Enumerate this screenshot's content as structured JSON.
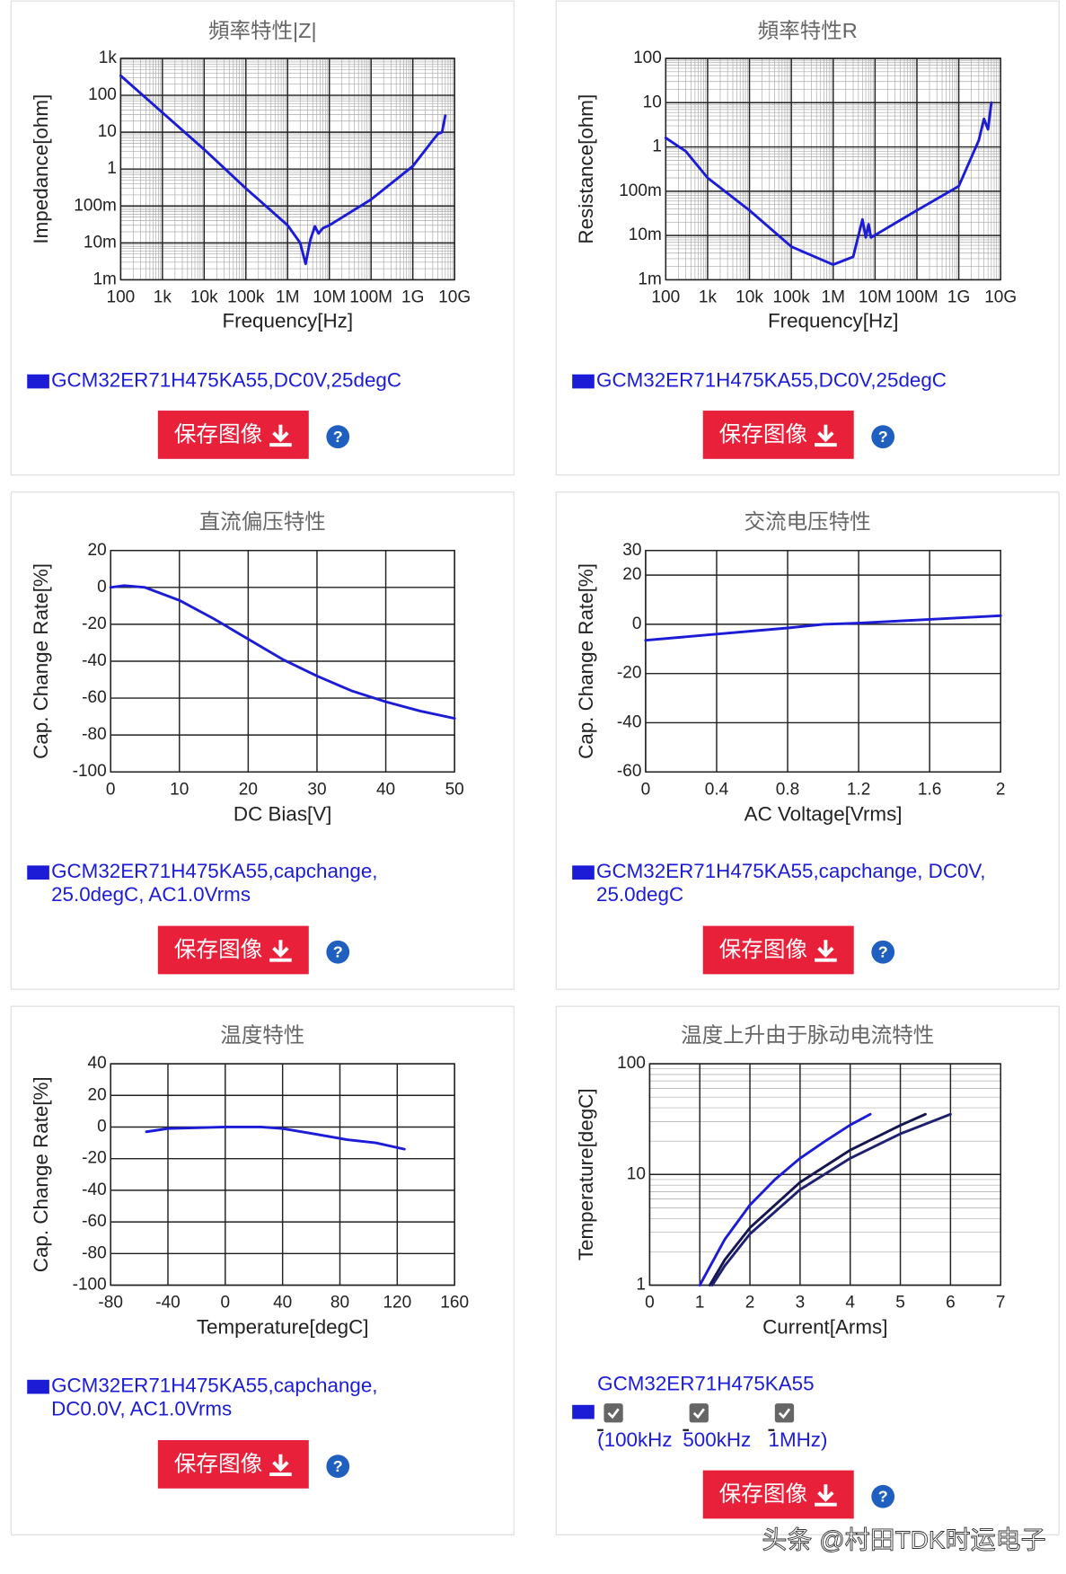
{
  "chart_data": [
    {
      "type": "line",
      "title": "頻率特性|Z|",
      "xlabel": "Frequency[Hz]",
      "ylabel": "Impedance[ohm]",
      "xscale": "log",
      "yscale": "log",
      "grid": true,
      "minor_grid": true,
      "xlim": [
        100,
        10000000000
      ],
      "ylim": [
        0.001,
        1000
      ],
      "xticks": [
        100,
        {
          "value": 1000,
          "label": "1k"
        },
        {
          "value": 10000,
          "label": "10k"
        },
        {
          "value": 100000,
          "label": "100k"
        },
        {
          "value": 1000000,
          "label": "1M"
        },
        {
          "value": 10000000,
          "label": "10M"
        },
        {
          "value": 100000000,
          "label": "100M"
        },
        {
          "value": 1000000000,
          "label": "1G"
        },
        {
          "value": 10000000000,
          "label": "10G"
        }
      ],
      "yticks": [
        {
          "value": 0.001,
          "label": "1m"
        },
        {
          "value": 0.01,
          "label": "10m"
        },
        {
          "value": 0.1,
          "label": "100m"
        },
        1,
        10,
        100,
        {
          "value": 1000,
          "label": "1k"
        }
      ],
      "series": [
        {
          "name": "GCM32ER71H475KA55,DC0V,25degC",
          "color": "#1c1cd6",
          "x": [
            100,
            1000,
            10000,
            100000,
            1000000,
            2000000,
            2700000,
            3500000,
            4500000,
            5500000,
            7000000,
            10000000,
            100000000,
            1000000000,
            3000000000,
            4000000000,
            5000000000,
            6000000000
          ],
          "values": [
            339,
            34,
            3.4,
            0.3,
            0.03,
            0.01,
            0.0027,
            0.012,
            0.028,
            0.018,
            0.025,
            0.03,
            0.15,
            1.2,
            6,
            9,
            10,
            28
          ]
        }
      ]
    },
    {
      "type": "line",
      "title": "頻率特性R",
      "xlabel": "Frequency[Hz]",
      "ylabel": "Resistance[ohm]",
      "xscale": "log",
      "yscale": "log",
      "grid": true,
      "minor_grid": true,
      "xlim": [
        100,
        10000000000
      ],
      "ylim": [
        0.001,
        100
      ],
      "xticks": [
        100,
        {
          "value": 1000,
          "label": "1k"
        },
        {
          "value": 10000,
          "label": "10k"
        },
        {
          "value": 100000,
          "label": "100k"
        },
        {
          "value": 1000000,
          "label": "1M"
        },
        {
          "value": 10000000,
          "label": "10M"
        },
        {
          "value": 100000000,
          "label": "100M"
        },
        {
          "value": 1000000000,
          "label": "1G"
        },
        {
          "value": 10000000000,
          "label": "10G"
        }
      ],
      "yticks": [
        {
          "value": 0.001,
          "label": "1m"
        },
        {
          "value": 0.01,
          "label": "10m"
        },
        {
          "value": 0.1,
          "label": "100m"
        },
        1,
        10,
        100
      ],
      "series": [
        {
          "name": "GCM32ER71H475KA55,DC0V,25degC",
          "color": "#1c1cd6",
          "x": [
            100,
            300,
            1000,
            10000,
            100000,
            1000000,
            3000000,
            5000000,
            6000000,
            7000000,
            8000000,
            100000000,
            1000000000,
            3000000000,
            4000000000,
            5000000000,
            6000000000
          ],
          "values": [
            1.6,
            0.8,
            0.2,
            0.037,
            0.0056,
            0.0022,
            0.0033,
            0.023,
            0.009,
            0.018,
            0.009,
            0.037,
            0.13,
            1.4,
            4.3,
            2.5,
            10
          ]
        }
      ]
    },
    {
      "type": "line",
      "title": "直流偏压特性",
      "xlabel": "DC Bias[V]",
      "ylabel": "Cap. Change Rate[%]",
      "xscale": "linear",
      "yscale": "linear",
      "grid": true,
      "xlim": [
        0,
        50
      ],
      "ylim": [
        -100,
        20
      ],
      "xticks": [
        0,
        10,
        20,
        30,
        40,
        50
      ],
      "yticks": [
        -100,
        -80,
        -60,
        -40,
        -20,
        0,
        20
      ],
      "series": [
        {
          "name": "GCM32ER71H475KA55,capchange, 25.0degC, AC1.0Vrms",
          "color": "#1c1cd6",
          "x": [
            0,
            2,
            5,
            10,
            15,
            20,
            25,
            30,
            35,
            40,
            45,
            50
          ],
          "values": [
            0,
            1,
            0,
            -7,
            -17,
            -28,
            -39,
            -48,
            -56,
            -62,
            -67,
            -71
          ]
        }
      ]
    },
    {
      "type": "line",
      "title": "交流电压特性",
      "xlabel": "AC Voltage[Vrms]",
      "ylabel": "Cap. Change Rate[%]",
      "xscale": "linear",
      "yscale": "linear",
      "grid": true,
      "xlim": [
        0,
        2
      ],
      "ylim": [
        -60,
        30
      ],
      "xticks": [
        0,
        0.4,
        0.8,
        1.2,
        1.6,
        2
      ],
      "yticks": [
        -60,
        -40,
        -20,
        0,
        20,
        30
      ],
      "series": [
        {
          "name": "GCM32ER71H475KA55,capchange, DC0V, 25.0degC",
          "color": "#1c1cd6",
          "x": [
            0,
            0.4,
            0.8,
            1.0,
            1.2,
            1.6,
            2
          ],
          "values": [
            -6.5,
            -4,
            -1.5,
            0,
            0.5,
            2,
            3.5
          ]
        }
      ]
    },
    {
      "type": "line",
      "title": "温度特性",
      "xlabel": "Temperature[degC]",
      "ylabel": "Cap. Change Rate[%]",
      "xscale": "linear",
      "yscale": "linear",
      "grid": true,
      "xlim": [
        -80,
        160
      ],
      "ylim": [
        -100,
        40
      ],
      "xticks": [
        -80,
        -40,
        0,
        40,
        80,
        120,
        160
      ],
      "yticks": [
        -100,
        -80,
        -60,
        -40,
        -20,
        0,
        20,
        40
      ],
      "series": [
        {
          "name": "GCM32ER71H475KA55,capchange, DC0.0V, AC1.0Vrms",
          "color": "#1c1cd6",
          "x": [
            -55,
            -40,
            0,
            25,
            40,
            60,
            85,
            105,
            125
          ],
          "values": [
            -3,
            -1,
            0,
            0,
            -1,
            -4,
            -8,
            -10,
            -14
          ]
        }
      ]
    },
    {
      "type": "line",
      "title": "温度上升由于脉动电流特性",
      "xlabel": "Current[Arms]",
      "ylabel": "Temperature[degC]",
      "xscale": "linear",
      "yscale": "log",
      "grid": true,
      "minor_grid": true,
      "xlim": [
        0,
        7
      ],
      "ylim": [
        1,
        100
      ],
      "xticks": [
        0,
        1,
        2,
        3,
        4,
        5,
        6,
        7
      ],
      "yticks": [
        1,
        10,
        100
      ],
      "legend_title": "GCM32ER71H475KA55",
      "legend_color": "#1c1cd6",
      "series": [
        {
          "name": "(100kHz",
          "color": "#1c1cd6",
          "visible": true,
          "x": [
            1,
            1.5,
            2,
            2.5,
            3,
            3.5,
            4,
            4.4
          ],
          "values": [
            1,
            2.6,
            5.3,
            9,
            14,
            20,
            28,
            35
          ]
        },
        {
          "name": "500kHz",
          "color": "#16164e",
          "visible": true,
          "x": [
            1.2,
            1.5,
            2,
            3,
            4,
            5,
            5.5
          ],
          "values": [
            1,
            1.7,
            3.3,
            8.5,
            16.6,
            27.8,
            35
          ]
        },
        {
          "name": "1MHz)",
          "color": "#202070",
          "visible": true,
          "x": [
            1.25,
            1.5,
            2,
            3,
            4,
            5,
            6
          ],
          "values": [
            1,
            1.5,
            2.9,
            7.3,
            14,
            23.3,
            35
          ]
        }
      ]
    }
  ],
  "save_button_label": "保存图像",
  "help_icon": "?",
  "watermark": "头条 @村田TDK时运电子"
}
